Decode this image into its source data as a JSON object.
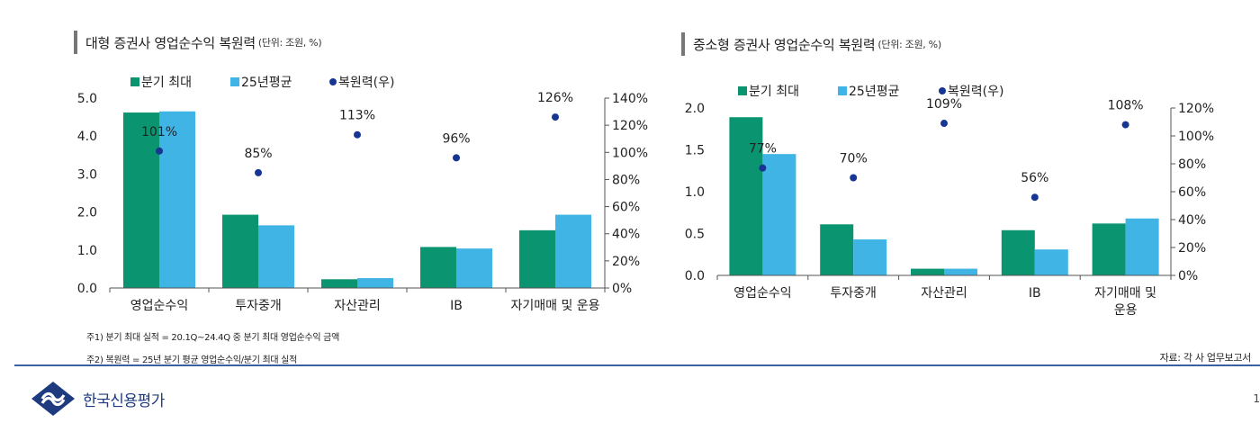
{
  "page": {
    "left_title": "대형 증권사 영업순수익 복원력",
    "left_unit": "(단위: 조원, %)",
    "right_title": "중소형 증권사 영업순수익 복원력",
    "right_unit": "(단위: 조원, %)",
    "note1": "주1) 분기 최대 실적 = 20.1Q~24.4Q 중 분기 최대 영업순수익 금액",
    "note2": "주2) 복원력 = 25년 분기 평균 영업순수익/분기 최대 실적",
    "source": "자료: 각 사 업무보고서",
    "logo_text": "한국신용평가",
    "page_number": "1"
  },
  "colors": {
    "bar_max": "#0a9470",
    "bar_avg": "#40b5e5",
    "dot": "#173593"
  },
  "chart_data": [
    {
      "type": "bar",
      "title": "대형 증권사 영업순수익 복원력",
      "categories": [
        [
          "영업순수익"
        ],
        [
          "투자중개"
        ],
        [
          "자산관리"
        ],
        [
          "IB"
        ],
        [
          "자기매매 및 운용"
        ]
      ],
      "series": [
        {
          "name": "분기 최대",
          "type": "bar",
          "axis": "left",
          "values": [
            4.62,
            1.93,
            0.23,
            1.08,
            1.52
          ]
        },
        {
          "name": "25년평균",
          "type": "bar",
          "axis": "left",
          "values": [
            4.65,
            1.65,
            0.26,
            1.04,
            1.93
          ]
        },
        {
          "name": "복원력(우)",
          "type": "scatter",
          "axis": "right",
          "values": [
            101,
            85,
            113,
            96,
            126
          ],
          "labels": [
            "101%",
            "85%",
            "113%",
            "96%",
            "126%"
          ]
        }
      ],
      "y_left": {
        "min": 0,
        "max": 5,
        "ticks": [
          "0.0",
          "1.0",
          "2.0",
          "3.0",
          "4.0",
          "5.0"
        ]
      },
      "y_right": {
        "min": 0,
        "max": 140,
        "ticks": [
          "0%",
          "20%",
          "40%",
          "60%",
          "80%",
          "100%",
          "120%",
          "140%"
        ]
      },
      "legend": "top",
      "grid": false
    },
    {
      "type": "bar",
      "title": "중소형 증권사 영업순수익 복원력",
      "categories": [
        [
          "영업순수익"
        ],
        [
          "투자중개"
        ],
        [
          "자산관리"
        ],
        [
          "IB"
        ],
        [
          "자기매매 및",
          "운용"
        ]
      ],
      "series": [
        {
          "name": "분기 최대",
          "type": "bar",
          "axis": "left",
          "values": [
            1.89,
            0.61,
            0.08,
            0.54,
            0.62
          ]
        },
        {
          "name": "25년평균",
          "type": "bar",
          "axis": "left",
          "values": [
            1.45,
            0.43,
            0.08,
            0.31,
            0.68
          ]
        },
        {
          "name": "복원력(우)",
          "type": "scatter",
          "axis": "right",
          "values": [
            77,
            70,
            109,
            56,
            108
          ],
          "labels": [
            "77%",
            "70%",
            "109%",
            "56%",
            "108%"
          ]
        }
      ],
      "y_left": {
        "min": 0,
        "max": 2,
        "ticks": [
          "0.0",
          "0.5",
          "1.0",
          "1.5",
          "2.0"
        ]
      },
      "y_right": {
        "min": 0,
        "max": 120,
        "ticks": [
          "0%",
          "20%",
          "40%",
          "60%",
          "80%",
          "100%",
          "120%"
        ]
      },
      "legend": "top",
      "grid": false
    }
  ]
}
